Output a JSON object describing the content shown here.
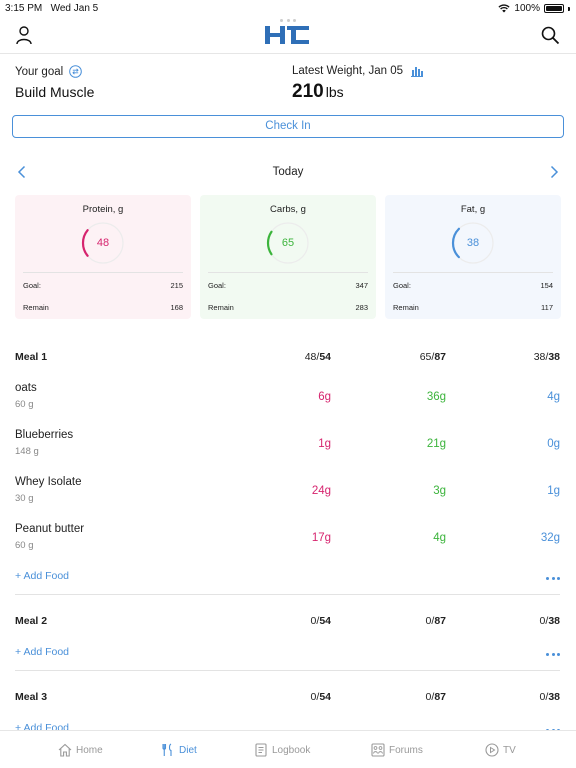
{
  "status": {
    "time": "3:15 PM",
    "date": "Wed Jan 5",
    "battery": "100%"
  },
  "header": {
    "logo": "HC"
  },
  "goal": {
    "label": "Your goal",
    "value": "Build Muscle"
  },
  "weight": {
    "label": "Latest Weight, Jan 05",
    "value": "210",
    "unit": "lbs"
  },
  "checkin": {
    "label": "Check In"
  },
  "date_nav": {
    "label": "Today"
  },
  "macros": [
    {
      "title": "Protein, g",
      "value": "48",
      "goal_label": "Goal:",
      "goal": "215",
      "remain_label": "Remain",
      "remain": "168",
      "fraction": 0.22,
      "color": "#d6246e",
      "bg": "#fdf2f5"
    },
    {
      "title": "Carbs, g",
      "value": "65",
      "goal_label": "Goal:",
      "goal": "347",
      "remain_label": "Remain",
      "remain": "283",
      "fraction": 0.19,
      "color": "#3cb43c",
      "bg": "#f2faf2"
    },
    {
      "title": "Fat, g",
      "value": "38",
      "goal_label": "Goal:",
      "goal": "154",
      "remain_label": "Remain",
      "remain": "117",
      "fraction": 0.25,
      "color": "#4a90d9",
      "bg": "#f3f7fd"
    }
  ],
  "meals": [
    {
      "name": "Meal 1",
      "protein": {
        "cur": "48/",
        "target": "54"
      },
      "carbs": {
        "cur": "65/",
        "target": "87"
      },
      "fat": {
        "cur": "38/",
        "target": "38"
      },
      "foods": [
        {
          "name": "oats",
          "amount": "60 g",
          "protein": "6g",
          "carbs": "36g",
          "fat": "4g"
        },
        {
          "name": "Blueberries",
          "amount": "148 g",
          "protein": "1g",
          "carbs": "21g",
          "fat": "0g"
        },
        {
          "name": "Whey Isolate",
          "amount": "30 g",
          "protein": "24g",
          "carbs": "3g",
          "fat": "1g"
        },
        {
          "name": "Peanut butter",
          "amount": "60 g",
          "protein": "17g",
          "carbs": "4g",
          "fat": "32g"
        }
      ],
      "add_label": "+ Add Food"
    },
    {
      "name": "Meal 2",
      "protein": {
        "cur": "0/",
        "target": "54"
      },
      "carbs": {
        "cur": "0/",
        "target": "87"
      },
      "fat": {
        "cur": "0/",
        "target": "38"
      },
      "add_label": "+ Add Food"
    },
    {
      "name": "Meal 3",
      "protein": {
        "cur": "0/",
        "target": "54"
      },
      "carbs": {
        "cur": "0/",
        "target": "87"
      },
      "fat": {
        "cur": "0/",
        "target": "38"
      },
      "add_label": "+ Add Food"
    }
  ],
  "tabs": [
    {
      "label": "Home",
      "icon": "home-icon"
    },
    {
      "label": "Diet",
      "icon": "fork-knife-icon",
      "active": true
    },
    {
      "label": "Logbook",
      "icon": "logbook-icon"
    },
    {
      "label": "Forums",
      "icon": "forums-icon"
    },
    {
      "label": "TV",
      "icon": "play-icon"
    }
  ]
}
